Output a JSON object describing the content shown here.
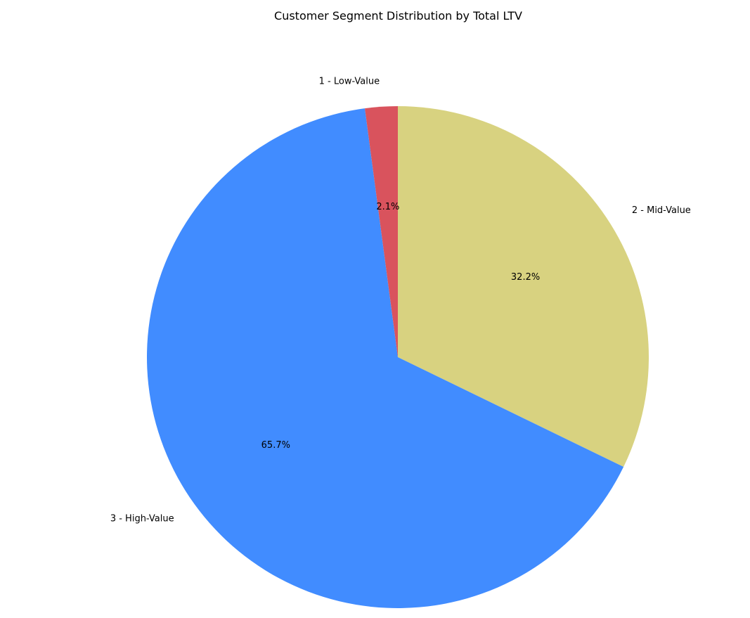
{
  "chart_data": {
    "type": "pie",
    "title": "Customer Segment Distribution by Total LTV",
    "start_angle_deg": 90,
    "direction": "clockwise",
    "slices": [
      {
        "label": "2 - Mid-Value",
        "value": 32.2,
        "pct_label": "32.2%",
        "color": "#d8d280"
      },
      {
        "label": "3 - High-Value",
        "value": 65.7,
        "pct_label": "65.7%",
        "color": "#418cff"
      },
      {
        "label": "1 - Low-Value",
        "value": 2.1,
        "pct_label": "2.1%",
        "color": "#d9535d"
      }
    ]
  }
}
